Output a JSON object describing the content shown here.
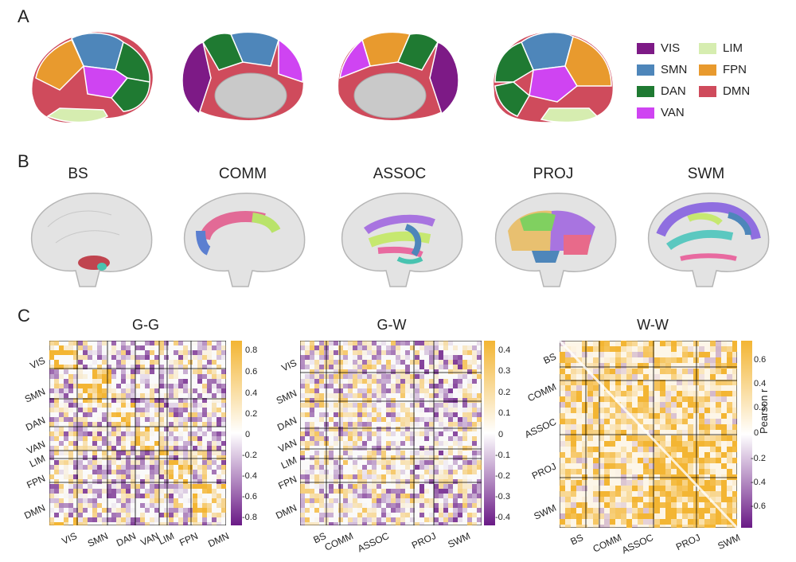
{
  "panels": {
    "a": "A",
    "b": "B",
    "c": "C"
  },
  "networks_legend": [
    {
      "label": "VIS",
      "color": "#7d1a86"
    },
    {
      "label": "SMN",
      "color": "#4e86ba"
    },
    {
      "label": "DAN",
      "color": "#1f7a32"
    },
    {
      "label": "VAN",
      "color": "#cf44f2"
    },
    {
      "label": "LIM",
      "color": "#d6edb0"
    },
    {
      "label": "FPN",
      "color": "#e89a2e"
    },
    {
      "label": "DMN",
      "color": "#cf4b5c"
    }
  ],
  "tracts": [
    "BS",
    "COMM",
    "ASSOC",
    "PROJ",
    "SWM"
  ],
  "matrices": [
    {
      "title": "G-G",
      "rows": [
        "VIS",
        "SMN",
        "DAN",
        "VAN",
        "LIM",
        "FPN",
        "DMN"
      ],
      "cols": [
        "VIS",
        "SMN",
        "DAN",
        "VAN",
        "LIM",
        "FPN",
        "DMN"
      ],
      "ticks": [
        "0.8",
        "0.6",
        "0.4",
        "0.2",
        "0",
        "-0.2",
        "-0.4",
        "-0.6",
        "-0.8"
      ]
    },
    {
      "title": "G-W",
      "rows": [
        "VIS",
        "SMN",
        "DAN",
        "VAN",
        "LIM",
        "FPN",
        "DMN"
      ],
      "cols": [
        "BS",
        "COMM",
        "ASSOC",
        "PROJ",
        "SWM"
      ],
      "ticks": [
        "0.4",
        "0.3",
        "0.2",
        "0.1",
        "0",
        "-0.1",
        "-0.2",
        "-0.3",
        "-0.4"
      ]
    },
    {
      "title": "W-W",
      "rows": [
        "BS",
        "COMM",
        "ASSOC",
        "PROJ",
        "SWM"
      ],
      "cols": [
        "BS",
        "COMM",
        "ASSOC",
        "PROJ",
        "SWM"
      ],
      "ticks": [
        "0.6",
        "0.4",
        "0.2",
        "0",
        "-0.2",
        "-0.4",
        "-0.6"
      ],
      "colorbar_label": "Pearson r"
    }
  ],
  "colors": {
    "positive": "#f3b533",
    "negative": "#6a1a86",
    "zero": "#ffffff"
  }
}
